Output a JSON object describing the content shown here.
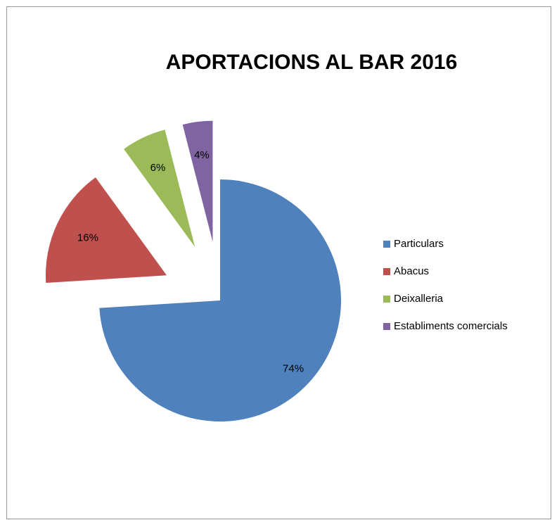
{
  "chart_data": {
    "type": "pie",
    "title": "APORTACIONS AL BAR 2016",
    "categories": [
      "Particulars",
      "Abacus",
      "Deixalleria",
      "Establiments comercials"
    ],
    "values": [
      74,
      16,
      6,
      4
    ],
    "value_labels": [
      "74%",
      "16%",
      "6%",
      "4%"
    ],
    "colors": [
      "#4f81bd",
      "#c0504d",
      "#9bbb59",
      "#8064a2"
    ],
    "legend": "right"
  }
}
